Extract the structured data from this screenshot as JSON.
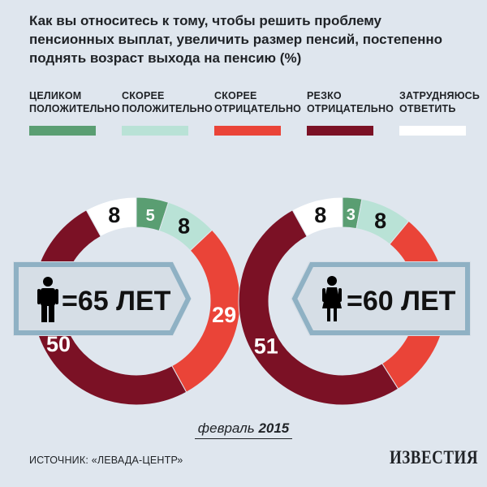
{
  "title": "Как вы относитесь к тому, чтобы решить проблему пенсионных выплат, увеличить размер пенсий, постепенно поднять возраст выхода на пенсию (%)",
  "legend": [
    {
      "label": "ЦЕЛИКОМ ПОЛОЖИТЕЛЬНО",
      "color": "#5a9e72"
    },
    {
      "label": "СКОРЕЕ ПОЛОЖИТЕЛЬНО",
      "color": "#b9e2d6"
    },
    {
      "label": "СКОРЕЕ ОТРИЦАТЕЛЬНО",
      "color": "#ea4438"
    },
    {
      "label": "РЕЗКО ОТРИЦАТЕЛЬНО",
      "color": "#7b1125"
    },
    {
      "label": "ЗАТРУДНЯЮСЬ ОТВЕТИТЬ",
      "color": "#ffffff"
    }
  ],
  "chart_data": [
    {
      "type": "pie",
      "donut": true,
      "center_label": "=65 ЛЕТ",
      "icon": "man-icon",
      "categories": [
        "Целиком положительно",
        "Скорее положительно",
        "Скорее отрицательно",
        "Резко отрицательно",
        "Затрудняюсь ответить"
      ],
      "values": [
        5,
        8,
        29,
        50,
        8
      ]
    },
    {
      "type": "pie",
      "donut": true,
      "center_label": "=60 ЛЕТ",
      "icon": "woman-icon",
      "categories": [
        "Целиком положительно",
        "Скорее положительно",
        "Скорее отрицательно",
        "Резко отрицательно",
        "Затрудняюсь ответить"
      ],
      "values": [
        3,
        8,
        30,
        51,
        8
      ]
    }
  ],
  "date": {
    "month": "февраль",
    "year": "2015"
  },
  "source": "ИСТОЧНИК: «ЛЕВАДА-ЦЕНТР»",
  "brand": "ИЗВЕСТИЯ"
}
